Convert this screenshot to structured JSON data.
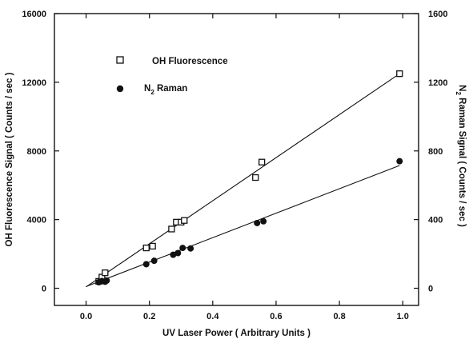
{
  "chart_data": {
    "type": "scatter",
    "x": {
      "label": "UV Laser Power   ( Arbitrary Units )",
      "lim": [
        -0.1,
        1.05
      ],
      "ticks": [
        0.0,
        0.2,
        0.4,
        0.6,
        0.8,
        1.0
      ],
      "tick_labels": [
        "0.0",
        "0.2",
        "0.4",
        "0.6",
        "0.8",
        "1.0"
      ]
    },
    "y_left": {
      "label": "OH Fluorescence Signal   ( Counts / sec )",
      "lim": [
        -1000,
        16000
      ],
      "ticks": [
        0,
        4000,
        8000,
        12000,
        16000
      ],
      "tick_labels": [
        "0",
        "4000",
        "8000",
        "12000",
        "16000"
      ]
    },
    "y_right": {
      "label": "N2 Raman Signal   ( Counts / sec )",
      "lim": [
        -100,
        1600
      ],
      "ticks": [
        0,
        400,
        800,
        1200,
        1600
      ],
      "tick_labels": [
        "0",
        "400",
        "800",
        "1200",
        "1600"
      ]
    },
    "series": [
      {
        "name": "OH Fluorescence",
        "axis": "left",
        "marker": "open-square",
        "points": [
          [
            0.04,
            400
          ],
          [
            0.05,
            650
          ],
          [
            0.06,
            900
          ],
          [
            0.19,
            2350
          ],
          [
            0.21,
            2450
          ],
          [
            0.27,
            3450
          ],
          [
            0.285,
            3850
          ],
          [
            0.3,
            3850
          ],
          [
            0.31,
            3950
          ],
          [
            0.535,
            6450
          ],
          [
            0.555,
            7350
          ],
          [
            0.99,
            12500
          ]
        ],
        "fit_line": [
          [
            0.0,
            80
          ],
          [
            0.99,
            12500
          ]
        ]
      },
      {
        "name": "N2 Raman",
        "axis": "right",
        "marker": "filled-circle",
        "points": [
          [
            0.04,
            35
          ],
          [
            0.05,
            42
          ],
          [
            0.06,
            38
          ],
          [
            0.065,
            45
          ],
          [
            0.19,
            140
          ],
          [
            0.215,
            160
          ],
          [
            0.275,
            195
          ],
          [
            0.29,
            205
          ],
          [
            0.305,
            235
          ],
          [
            0.33,
            232
          ],
          [
            0.54,
            380
          ],
          [
            0.56,
            390
          ],
          [
            0.99,
            740
          ]
        ],
        "fit_line": [
          [
            0.0,
            10
          ],
          [
            0.99,
            715
          ]
        ]
      }
    ],
    "legend": {
      "placement": "top-left",
      "items": [
        {
          "marker": "open-square",
          "label": "OH Fluorescence"
        },
        {
          "marker": "filled-circle",
          "label_main": "N",
          "label_sub": "2",
          "label_rest": " Raman"
        }
      ]
    }
  }
}
